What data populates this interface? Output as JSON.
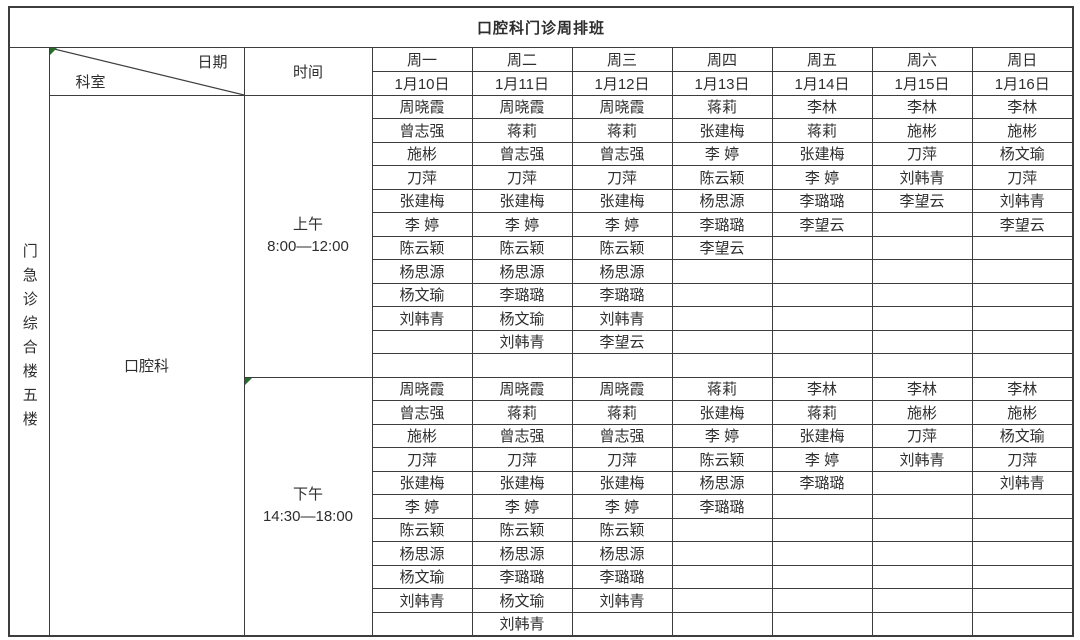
{
  "title": "口腔科门诊周排班",
  "colors": {
    "border": "#3d3d3d",
    "text": "#2e2e2e",
    "marker_green": "#276b2e",
    "background": "#ffffff"
  },
  "header": {
    "date_label": "日期",
    "dept_label": "科室",
    "time_label": "时间",
    "days": [
      {
        "weekday": "周一",
        "date": "1月10日"
      },
      {
        "weekday": "周二",
        "date": "1月11日"
      },
      {
        "weekday": "周三",
        "date": "1月12日"
      },
      {
        "weekday": "周四",
        "date": "1月13日"
      },
      {
        "weekday": "周五",
        "date": "1月14日"
      },
      {
        "weekday": "周六",
        "date": "1月15日"
      },
      {
        "weekday": "周日",
        "date": "1月16日"
      }
    ]
  },
  "location": "门急诊综合楼五楼",
  "department": "口腔科",
  "sessions": [
    {
      "label": "上午",
      "time": "8:00—12:00",
      "rows": 12,
      "corner_marker": false,
      "columns": [
        [
          "周晓霞",
          "曾志强",
          "施彬",
          "刀萍",
          "张建梅",
          "李 婷",
          "陈云颖",
          "杨思源",
          "杨文瑜",
          "刘韩青"
        ],
        [
          "周晓霞",
          "蒋莉",
          "曾志强",
          "刀萍",
          "张建梅",
          "李 婷",
          "陈云颖",
          "杨思源",
          "李璐璐",
          "杨文瑜",
          "刘韩青"
        ],
        [
          "周晓霞",
          "蒋莉",
          "曾志强",
          "刀萍",
          "张建梅",
          "李 婷",
          "陈云颖",
          "杨思源",
          "李璐璐",
          "刘韩青",
          "李望云"
        ],
        [
          "蒋莉",
          "张建梅",
          "李 婷",
          "陈云颖",
          "杨思源",
          "李璐璐",
          "李望云"
        ],
        [
          "李林",
          "蒋莉",
          "张建梅",
          "李 婷",
          "李璐璐",
          "李望云"
        ],
        [
          "李林",
          "施彬",
          "刀萍",
          "刘韩青",
          "李望云"
        ],
        [
          "李林",
          "施彬",
          "杨文瑜",
          "刀萍",
          "刘韩青",
          "李望云"
        ]
      ]
    },
    {
      "label": "下午",
      "time": "14:30—18:00",
      "rows": 11,
      "corner_marker": true,
      "columns": [
        [
          "周晓霞",
          "曾志强",
          "施彬",
          "刀萍",
          "张建梅",
          "李 婷",
          "陈云颖",
          "杨思源",
          "杨文瑜",
          "刘韩青"
        ],
        [
          "周晓霞",
          "蒋莉",
          "曾志强",
          "刀萍",
          "张建梅",
          "李 婷",
          "陈云颖",
          "杨思源",
          "李璐璐",
          "杨文瑜",
          "刘韩青"
        ],
        [
          "周晓霞",
          "蒋莉",
          "曾志强",
          "刀萍",
          "张建梅",
          "李 婷",
          "陈云颖",
          "杨思源",
          "李璐璐",
          "刘韩青"
        ],
        [
          "蒋莉",
          "张建梅",
          "李 婷",
          "陈云颖",
          "杨思源",
          "李璐璐"
        ],
        [
          "李林",
          "蒋莉",
          "张建梅",
          "李 婷",
          "李璐璐"
        ],
        [
          "李林",
          "施彬",
          "刀萍",
          "刘韩青"
        ],
        [
          "李林",
          "施彬",
          "杨文瑜",
          "刀萍",
          "刘韩青"
        ]
      ]
    }
  ]
}
